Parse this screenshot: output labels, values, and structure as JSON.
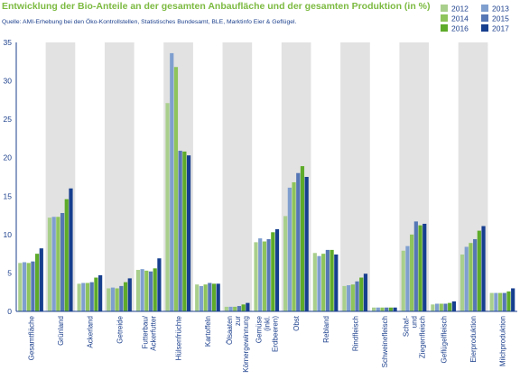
{
  "chart_data": {
    "type": "bar",
    "title": "Entwicklung der Bio-Anteile an der gesamten Anbaufläche und der gesamten Produktion (in %)",
    "subtitle": "Quelle: AMI-Erhebung bei den Öko-Kontrollstellen, Statistisches Bundesamt, BLE, Marktinfo Eier & Geflügel.",
    "xlabel": "",
    "ylabel": "",
    "ylim": [
      0,
      35
    ],
    "yticks": [
      "0",
      "5",
      "10",
      "15",
      "20",
      "25",
      "30",
      "35"
    ],
    "legend_position": "top-right",
    "grid": "alternating shaded category bands",
    "colors": {
      "2012": "#a9cf8c",
      "2013": "#7f9fcf",
      "2014": "#8ec45b",
      "2015": "#5677b5",
      "2016": "#5eab2a",
      "2017": "#173f8f",
      "band": "#e2e2e2",
      "axis": "#1b3f8c",
      "title": "#7cba41"
    },
    "categories": [
      "Gesamtfläche",
      "Grünland",
      "Ackerland",
      "Getreide",
      "Futterbau/ Ackerfutter",
      "Hülsenfrüchte",
      "Kartoffeln",
      "Ölsaaten zur Körnergewinnung",
      "Gemüse (inkl. Erdbeeren)",
      "Obst",
      "Rebland",
      "Rindfleisch",
      "Schweinefleisch",
      "Schaf- und Ziegenfleisch",
      "Geflügelfleisch",
      "Eierproduktion",
      "Milchproduktion"
    ],
    "series": [
      {
        "name": "2012",
        "values": [
          6.3,
          12.2,
          3.6,
          3.0,
          5.4,
          27.1,
          3.5,
          0.6,
          9.0,
          12.4,
          7.6,
          3.3,
          0.5,
          7.9,
          0.9,
          7.4,
          2.4
        ]
      },
      {
        "name": "2013",
        "values": [
          6.4,
          12.3,
          3.7,
          3.1,
          5.5,
          33.6,
          3.3,
          0.6,
          9.5,
          16.1,
          7.2,
          3.4,
          0.5,
          8.5,
          1.0,
          8.4,
          2.4
        ]
      },
      {
        "name": "2014",
        "values": [
          6.3,
          12.3,
          3.7,
          3.0,
          5.3,
          31.8,
          3.5,
          0.6,
          9.1,
          16.8,
          7.5,
          3.5,
          0.5,
          10.0,
          1.0,
          8.9,
          2.4
        ]
      },
      {
        "name": "2015",
        "values": [
          6.5,
          12.8,
          3.8,
          3.3,
          5.2,
          20.9,
          3.7,
          0.7,
          9.4,
          18.0,
          8.0,
          3.9,
          0.5,
          11.7,
          1.0,
          9.4,
          2.4
        ]
      },
      {
        "name": "2016",
        "values": [
          7.5,
          14.6,
          4.4,
          3.8,
          5.6,
          20.8,
          3.6,
          0.9,
          10.3,
          18.9,
          8.0,
          4.4,
          0.5,
          11.2,
          1.1,
          10.5,
          2.6
        ]
      },
      {
        "name": "2017",
        "values": [
          8.2,
          16.0,
          4.7,
          4.3,
          6.9,
          20.3,
          3.6,
          1.1,
          10.7,
          17.5,
          7.4,
          4.9,
          0.5,
          11.4,
          1.3,
          11.1,
          3.0
        ]
      }
    ]
  }
}
